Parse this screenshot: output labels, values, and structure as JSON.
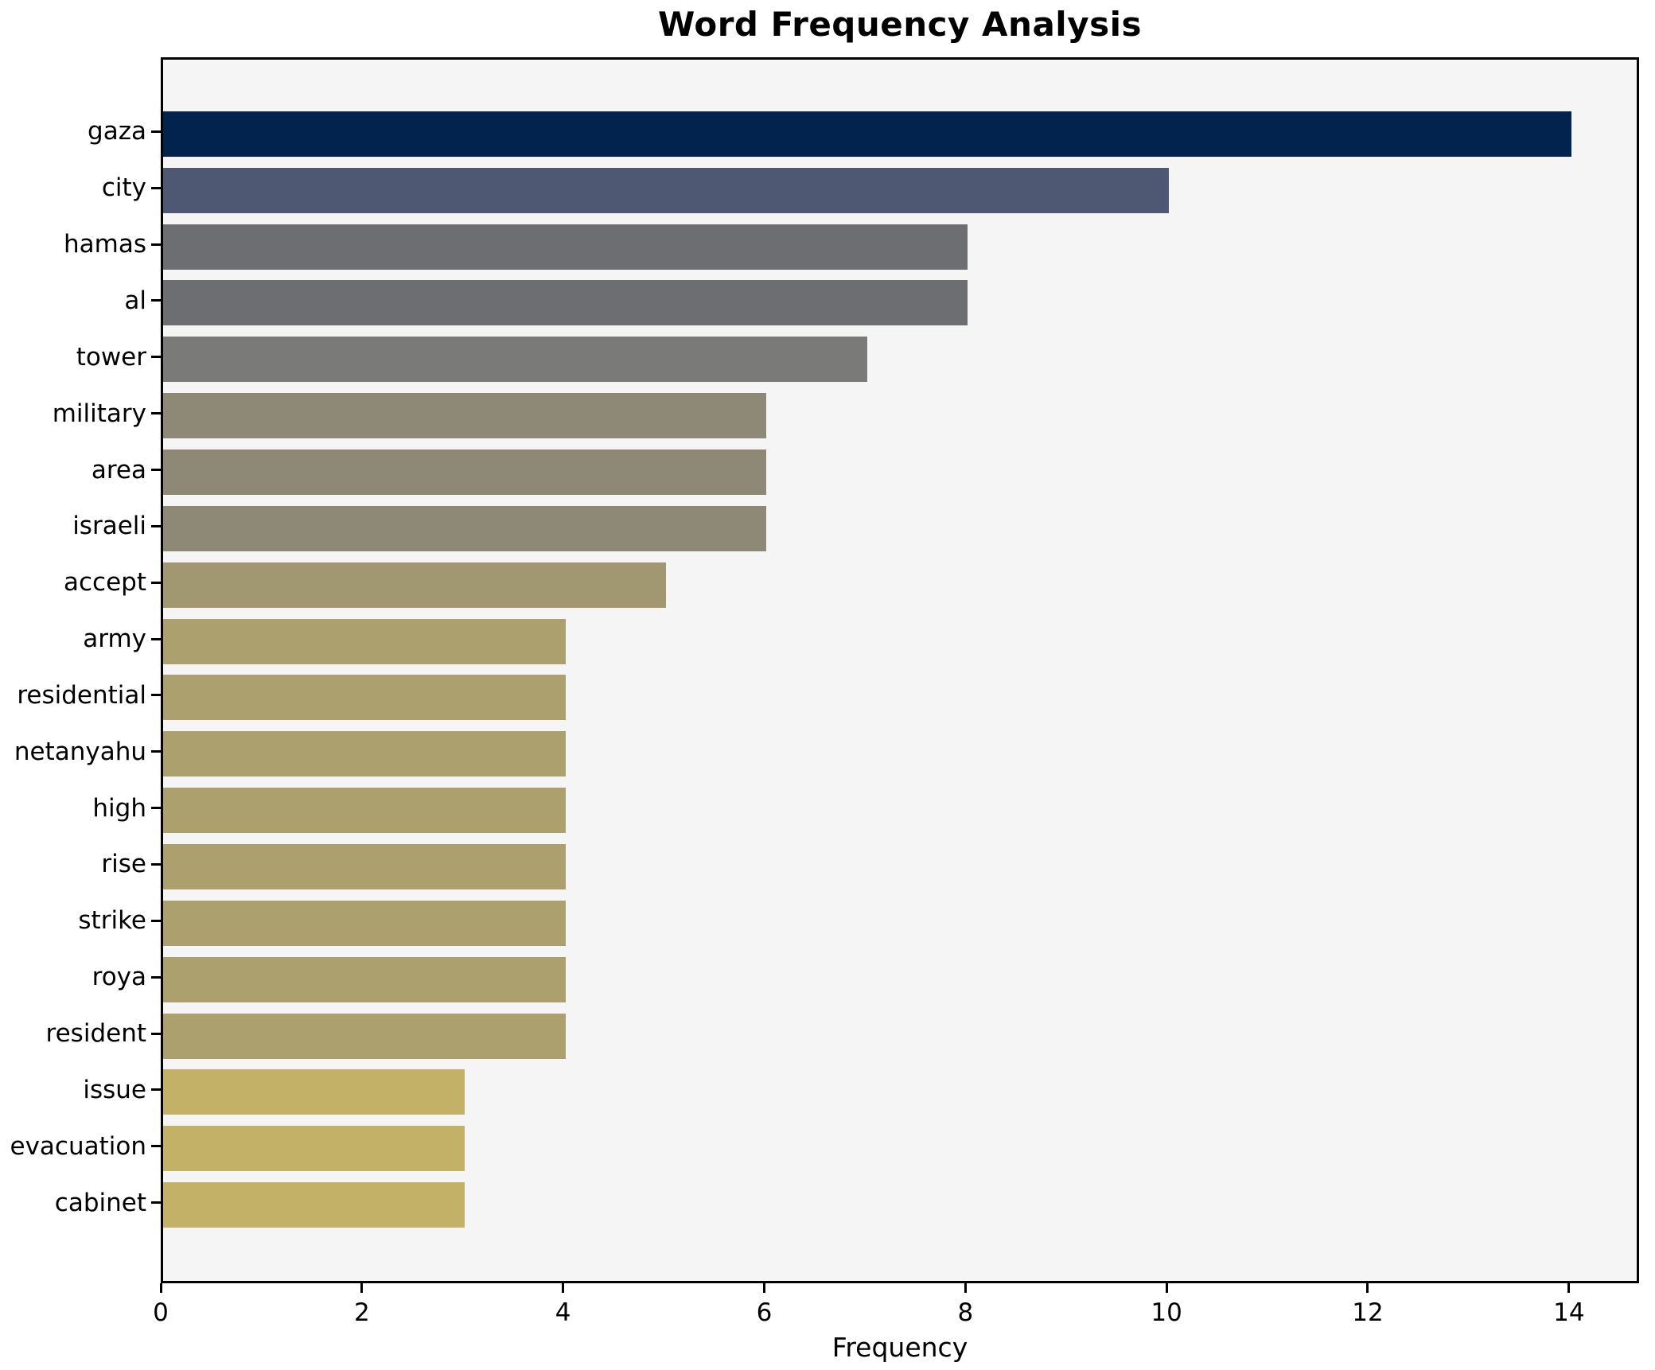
{
  "chart_data": {
    "type": "bar",
    "orientation": "horizontal",
    "title": "Word Frequency Analysis",
    "xlabel": "Frequency",
    "ylabel": "",
    "categories": [
      "gaza",
      "city",
      "hamas",
      "al",
      "tower",
      "military",
      "area",
      "israeli",
      "accept",
      "army",
      "residential",
      "netanyahu",
      "high",
      "rise",
      "strike",
      "roya",
      "resident",
      "issue",
      "evacuation",
      "cabinet"
    ],
    "values": [
      14,
      10,
      8,
      8,
      7,
      6,
      6,
      6,
      5,
      4,
      4,
      4,
      4,
      4,
      4,
      4,
      4,
      3,
      3,
      3
    ],
    "bar_colors": [
      "#02234e",
      "#4f5872",
      "#6d6e71",
      "#6d6e71",
      "#7a7a78",
      "#8e8877",
      "#8e8877",
      "#8e8877",
      "#a19872",
      "#aca06f",
      "#aca06f",
      "#aca06f",
      "#aca06f",
      "#aca06f",
      "#aca06f",
      "#aca06f",
      "#aca06f",
      "#c3b167",
      "#c3b167",
      "#c3b167"
    ],
    "x_ticks": [
      0,
      2,
      4,
      6,
      8,
      10,
      12,
      14
    ],
    "xlim": [
      0,
      14.65
    ],
    "grid": false,
    "legend": "none",
    "plot_background": "#f5f5f6",
    "figure_background": "#ffffff",
    "spine_color": "#000000"
  }
}
